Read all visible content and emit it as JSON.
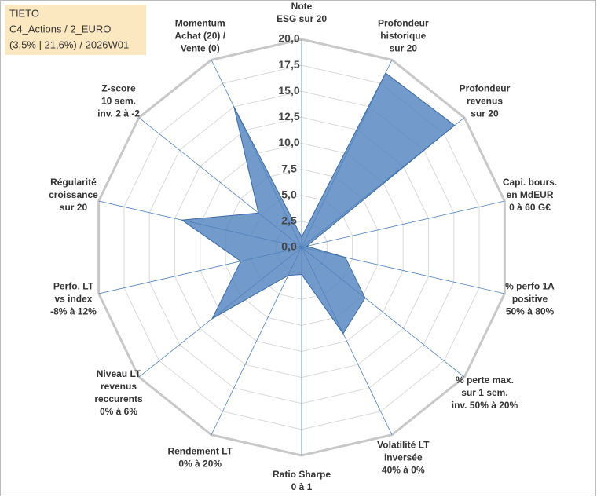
{
  "title_box": [
    "TIETO",
    "C4_Actions / 2_EURO",
    "(3,5% | 21,6%) / 2026W01"
  ],
  "chart_data": {
    "type": "radar",
    "categories": [
      [
        "Note",
        "ESG sur 20"
      ],
      [
        "Profondeur",
        "historique",
        "sur 20"
      ],
      [
        "Profondeur",
        "revenus",
        "sur 20"
      ],
      [
        "Capi. bours.",
        "en MdEUR",
        "0 à 60 G€"
      ],
      [
        "% perfo 1A",
        "positive",
        "50% à 80%"
      ],
      [
        "% perte max.",
        "sur 1 sem.",
        "inv. 50% à 20%"
      ],
      [
        "Volatilité LT",
        "inversée",
        "40% à 0%"
      ],
      [
        "Ratio Sharpe",
        "0 à 1"
      ],
      [
        "Rendement LT",
        "0% à 20%"
      ],
      [
        "Niveau LT",
        "revenus",
        "reccurents",
        "0% à 6%"
      ],
      [
        "Perfo. LT",
        "vs index",
        "-8% à 12%"
      ],
      [
        "Régularité",
        "croissance",
        "sur 20"
      ],
      [
        "Z-score",
        "10 sem.",
        "inv. 2 à -2"
      ],
      [
        "Momentum",
        "Achat (20) /",
        "Vente (0)"
      ]
    ],
    "values": [
      1,
      18.6,
      18.8,
      0.5,
      4.3,
      7.8,
      9.2,
      2.6,
      3,
      11,
      6,
      11.8,
      5.3,
      15
    ],
    "color": "#4f81bd",
    "ylim": [
      0,
      20
    ],
    "yticks": [
      {
        "value": 0,
        "label": "0,0"
      },
      {
        "value": 2.5,
        "label": "2,5"
      },
      {
        "value": 5,
        "label": "5,0"
      },
      {
        "value": 7.5,
        "label": "7,5"
      },
      {
        "value": 10,
        "label": "10,0"
      },
      {
        "value": 12.5,
        "label": "12,5"
      },
      {
        "value": 15,
        "label": "15,0"
      },
      {
        "value": 17.5,
        "label": "17,5"
      },
      {
        "value": 20,
        "label": "20,0"
      }
    ],
    "grid": true
  }
}
